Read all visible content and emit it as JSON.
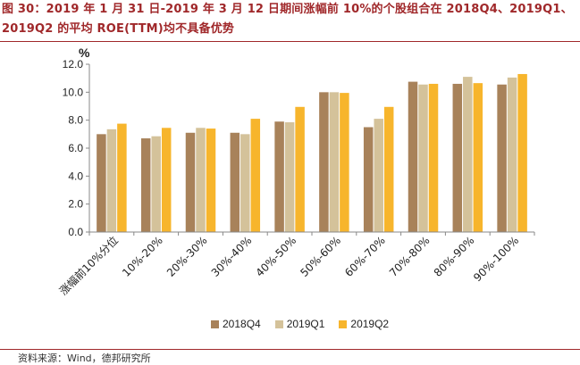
{
  "header": {
    "title_line1": "图 30：2019 年 1 月 31 日-2019 年 3 月 12 日期间涨幅前 10%的个股组合在 2018Q4、2019Q1、",
    "title_line2": "2019Q2 的平均 ROE(TTM)均不具备优势"
  },
  "source": {
    "text": "资料来源：Wind，德邦研究所"
  },
  "colors": {
    "2018Q4": "#a8825a",
    "2019Q1": "#d4c29a",
    "2019Q2": "#f7b52c",
    "title": "#a0282a"
  },
  "chart_data": {
    "type": "bar",
    "title": "",
    "ylabel": "%",
    "xlabel": "",
    "ylim": [
      0,
      12
    ],
    "yticks": [
      "0.0",
      "2.0",
      "4.0",
      "6.0",
      "8.0",
      "10.0",
      "12.0"
    ],
    "categories": [
      "涨幅前10%分位",
      "10%-20%",
      "20%-30%",
      "30%-40%",
      "40%-50%",
      "50%-60%",
      "60%-70%",
      "70%-80%",
      "80%-90%",
      "90%-100%"
    ],
    "series": [
      {
        "name": "2018Q4",
        "values": [
          7.0,
          6.7,
          7.1,
          7.1,
          7.9,
          10.0,
          7.5,
          10.75,
          10.6,
          10.55
        ]
      },
      {
        "name": "2019Q1",
        "values": [
          7.35,
          6.85,
          7.45,
          7.0,
          7.85,
          10.0,
          8.1,
          10.55,
          11.1,
          11.05
        ]
      },
      {
        "name": "2019Q2",
        "values": [
          7.75,
          7.45,
          7.4,
          8.1,
          8.95,
          9.95,
          8.95,
          10.6,
          10.65,
          11.3
        ]
      }
    ],
    "legend_position": "bottom"
  }
}
